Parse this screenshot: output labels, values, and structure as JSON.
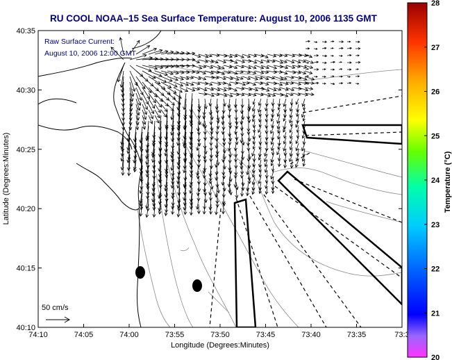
{
  "title": "RU COOL  NOAA–15  Sea Surface Temperature:  August 10, 2006 1135 GMT",
  "inset": {
    "line1": "Raw Surface Current:",
    "line2": "August 10, 2006 12:00 GMT"
  },
  "axes": {
    "xlabel": "Longitude (Degrees:Minutes)",
    "ylabel": "Latitude (Degrees:Minutes)",
    "xticks": [
      "74:10",
      "74:05",
      "74:00",
      "73:55",
      "73:50",
      "73:45",
      "73:40",
      "73:35",
      "73:3"
    ],
    "yticks": [
      "40:35",
      "40:30",
      "40:25",
      "40:20",
      "40:15",
      "40:10"
    ]
  },
  "scale_label": "50 cm/s",
  "colorbar": {
    "label": "Temperature (°C)",
    "ticks": [
      "28",
      "27",
      "26",
      "25",
      "24",
      "23",
      "22",
      "21",
      "20"
    ],
    "min": 20,
    "max": 28
  },
  "colors": {
    "title": "#000080",
    "vectors": "#000000",
    "coast": "#000000",
    "bathymetry": "#888888"
  }
}
